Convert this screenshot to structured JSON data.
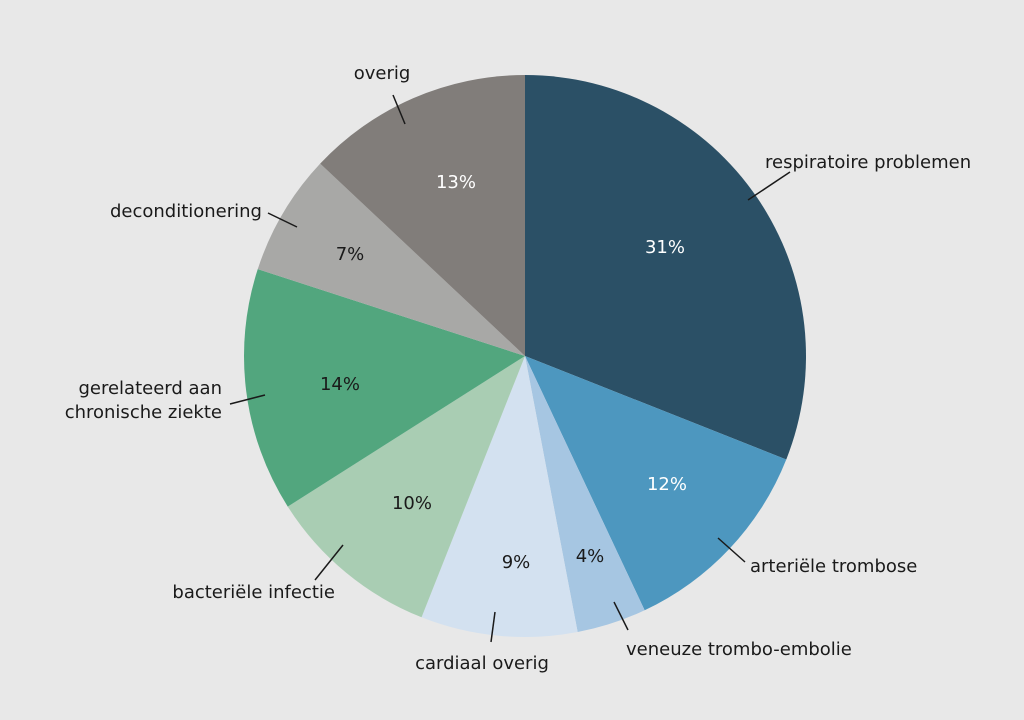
{
  "chart_data": {
    "type": "pie",
    "title": "",
    "start": "top, clockwise",
    "slices": [
      {
        "label": "respiratoire problemen",
        "value": 31,
        "value_label": "31%",
        "color": "#2b5066",
        "text_color": "#ffffff"
      },
      {
        "label": "arteriële trombose",
        "value": 12,
        "value_label": "12%",
        "color": "#4d97bf",
        "text_color": "#ffffff"
      },
      {
        "label": "veneuze trombo-embolie",
        "value": 4,
        "value_label": "4%",
        "color": "#a6c6e2",
        "text_color": "#1a1a1a"
      },
      {
        "label": "cardiaal overig",
        "value": 9,
        "value_label": "9%",
        "color": "#d3e1f0",
        "text_color": "#1a1a1a"
      },
      {
        "label": "bacteriële infectie",
        "value": 10,
        "value_label": "10%",
        "color": "#a9cdb3",
        "text_color": "#1a1a1a"
      },
      {
        "label": "gerelateerd aan chronische ziekte",
        "label_lines": [
          "gerelateerd aan",
          "chronische ziekte"
        ],
        "value": 14,
        "value_label": "14%",
        "color": "#52a67e",
        "text_color": "#1a1a1a"
      },
      {
        "label": "deconditionering",
        "value": 7,
        "value_label": "7%",
        "color": "#a8a8a6",
        "text_color": "#1a1a1a"
      },
      {
        "label": "overig",
        "value": 13,
        "value_label": "13%",
        "color": "#817d7a",
        "text_color": "#ffffff"
      }
    ]
  }
}
